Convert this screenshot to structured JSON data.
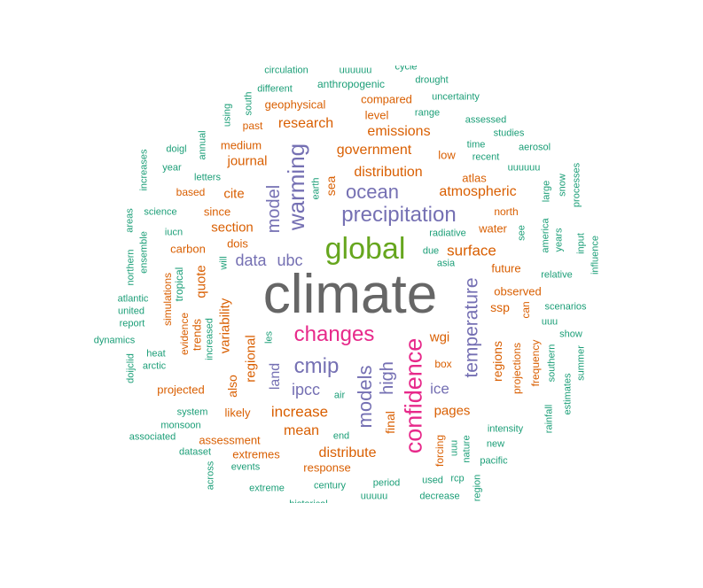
{
  "colors": {
    "dark_gray": "#666666",
    "green": "#66a61e",
    "pink": "#e7298a",
    "purple": "#7570b3",
    "orange": "#d95f02",
    "teal": "#1b9e77"
  },
  "words": [
    {
      "text": "climate",
      "color": "dark_gray",
      "vertical": false
    },
    {
      "text": "global",
      "color": "green",
      "vertical": false
    },
    {
      "text": "changes",
      "color": "pink",
      "vertical": false
    },
    {
      "text": "confidence",
      "color": "pink",
      "vertical": true
    },
    {
      "text": "precipitation",
      "color": "purple",
      "vertical": false
    },
    {
      "text": "models",
      "color": "purple",
      "vertical": true
    },
    {
      "text": "warming",
      "color": "purple",
      "vertical": true
    },
    {
      "text": "model",
      "color": "purple",
      "vertical": true
    },
    {
      "text": "cmip",
      "color": "purple",
      "vertical": false
    },
    {
      "text": "ocean",
      "color": "purple",
      "vertical": false
    },
    {
      "text": "high",
      "color": "purple",
      "vertical": true
    },
    {
      "text": "temperature",
      "color": "purple",
      "vertical": true
    },
    {
      "text": "ipcc",
      "color": "purple",
      "vertical": false
    },
    {
      "text": "data",
      "color": "purple",
      "vertical": false
    },
    {
      "text": "ubc",
      "color": "purple",
      "vertical": false
    },
    {
      "text": "land",
      "color": "purple",
      "vertical": true
    },
    {
      "text": "ice",
      "color": "purple",
      "vertical": false
    },
    {
      "text": "variability",
      "color": "orange",
      "vertical": true
    },
    {
      "text": "increase",
      "color": "orange",
      "vertical": false
    },
    {
      "text": "surface",
      "color": "orange",
      "vertical": false
    },
    {
      "text": "distribution",
      "color": "orange",
      "vertical": false
    },
    {
      "text": "government",
      "color": "orange",
      "vertical": false
    },
    {
      "text": "emissions",
      "color": "orange",
      "vertical": false
    },
    {
      "text": "atmospheric",
      "color": "orange",
      "vertical": false
    },
    {
      "text": "research",
      "color": "orange",
      "vertical": false
    },
    {
      "text": "distribute",
      "color": "orange",
      "vertical": false
    },
    {
      "text": "mean",
      "color": "orange",
      "vertical": false
    },
    {
      "text": "pages",
      "color": "orange",
      "vertical": false
    },
    {
      "text": "section",
      "color": "orange",
      "vertical": false
    },
    {
      "text": "journal",
      "color": "orange",
      "vertical": false
    },
    {
      "text": "cite",
      "color": "orange",
      "vertical": false
    },
    {
      "text": "regional",
      "color": "orange",
      "vertical": true
    },
    {
      "text": "final",
      "color": "orange",
      "vertical": true
    },
    {
      "text": "wgi",
      "color": "orange",
      "vertical": false
    },
    {
      "text": "quote",
      "color": "orange",
      "vertical": true
    },
    {
      "text": "regions",
      "color": "orange",
      "vertical": true
    },
    {
      "text": "ssp",
      "color": "orange",
      "vertical": false
    },
    {
      "text": "sea",
      "color": "orange",
      "vertical": true
    },
    {
      "text": "also",
      "color": "orange",
      "vertical": true
    },
    {
      "text": "trends",
      "color": "orange",
      "vertical": true
    },
    {
      "text": "carbon",
      "color": "orange",
      "vertical": false
    },
    {
      "text": "assessment",
      "color": "orange",
      "vertical": false
    },
    {
      "text": "extremes",
      "color": "orange",
      "vertical": false
    },
    {
      "text": "response",
      "color": "orange",
      "vertical": false
    },
    {
      "text": "projected",
      "color": "orange",
      "vertical": false
    },
    {
      "text": "observed",
      "color": "orange",
      "vertical": false
    },
    {
      "text": "future",
      "color": "orange",
      "vertical": false
    },
    {
      "text": "water",
      "color": "orange",
      "vertical": false
    },
    {
      "text": "atlas",
      "color": "orange",
      "vertical": false
    },
    {
      "text": "low",
      "color": "orange",
      "vertical": false
    },
    {
      "text": "level",
      "color": "orange",
      "vertical": false
    },
    {
      "text": "compared",
      "color": "orange",
      "vertical": false
    },
    {
      "text": "geophysical",
      "color": "orange",
      "vertical": false
    },
    {
      "text": "anthropogenic",
      "color": "teal",
      "vertical": false
    },
    {
      "text": "since",
      "color": "orange",
      "vertical": false
    },
    {
      "text": "dois",
      "color": "orange",
      "vertical": false
    },
    {
      "text": "likely",
      "color": "orange",
      "vertical": false
    },
    {
      "text": "medium",
      "color": "orange",
      "vertical": false
    },
    {
      "text": "based",
      "color": "orange",
      "vertical": false
    },
    {
      "text": "box",
      "color": "orange",
      "vertical": false
    },
    {
      "text": "north",
      "color": "orange",
      "vertical": false
    },
    {
      "text": "projections",
      "color": "orange",
      "vertical": true
    },
    {
      "text": "frequency",
      "color": "orange",
      "vertical": true
    },
    {
      "text": "simulations",
      "color": "orange",
      "vertical": true
    },
    {
      "text": "evidence",
      "color": "orange",
      "vertical": true
    },
    {
      "text": "forcing",
      "color": "orange",
      "vertical": true
    },
    {
      "text": "can",
      "color": "orange",
      "vertical": true
    },
    {
      "text": "past",
      "color": "orange",
      "vertical": false
    },
    {
      "text": "tropical",
      "color": "teal",
      "vertical": true
    },
    {
      "text": "circulation",
      "color": "teal",
      "vertical": false
    },
    {
      "text": "uuuuuu",
      "color": "teal",
      "vertical": false
    },
    {
      "text": "cycle",
      "color": "teal",
      "vertical": false
    },
    {
      "text": "different",
      "color": "teal",
      "vertical": false
    },
    {
      "text": "drought",
      "color": "teal",
      "vertical": false
    },
    {
      "text": "uncertainty",
      "color": "teal",
      "vertical": false
    },
    {
      "text": "range",
      "color": "teal",
      "vertical": false
    },
    {
      "text": "assessed",
      "color": "teal",
      "vertical": false
    },
    {
      "text": "studies",
      "color": "teal",
      "vertical": false
    },
    {
      "text": "time",
      "color": "teal",
      "vertical": false
    },
    {
      "text": "aerosol",
      "color": "teal",
      "vertical": false
    },
    {
      "text": "recent",
      "color": "teal",
      "vertical": false
    },
    {
      "text": "uuuuuu",
      "color": "teal",
      "vertical": false
    },
    {
      "text": "doigl",
      "color": "teal",
      "vertical": false
    },
    {
      "text": "year",
      "color": "teal",
      "vertical": false
    },
    {
      "text": "letters",
      "color": "teal",
      "vertical": false
    },
    {
      "text": "science",
      "color": "teal",
      "vertical": false
    },
    {
      "text": "iucn",
      "color": "teal",
      "vertical": false
    },
    {
      "text": "radiative",
      "color": "teal",
      "vertical": false
    },
    {
      "text": "due",
      "color": "teal",
      "vertical": false
    },
    {
      "text": "asia",
      "color": "teal",
      "vertical": false
    },
    {
      "text": "relative",
      "color": "teal",
      "vertical": false
    },
    {
      "text": "scenarios",
      "color": "teal",
      "vertical": false
    },
    {
      "text": "uuu",
      "color": "teal",
      "vertical": false
    },
    {
      "text": "show",
      "color": "teal",
      "vertical": false
    },
    {
      "text": "atlantic",
      "color": "teal",
      "vertical": false
    },
    {
      "text": "united",
      "color": "teal",
      "vertical": false
    },
    {
      "text": "report",
      "color": "teal",
      "vertical": false
    },
    {
      "text": "dynamics",
      "color": "teal",
      "vertical": false
    },
    {
      "text": "heat",
      "color": "teal",
      "vertical": false
    },
    {
      "text": "arctic",
      "color": "teal",
      "vertical": false
    },
    {
      "text": "system",
      "color": "teal",
      "vertical": false
    },
    {
      "text": "monsoon",
      "color": "teal",
      "vertical": false
    },
    {
      "text": "associated",
      "color": "teal",
      "vertical": false
    },
    {
      "text": "dataset",
      "color": "teal",
      "vertical": false
    },
    {
      "text": "events",
      "color": "teal",
      "vertical": false
    },
    {
      "text": "extreme",
      "color": "teal",
      "vertical": false
    },
    {
      "text": "century",
      "color": "teal",
      "vertical": false
    },
    {
      "text": "period",
      "color": "teal",
      "vertical": false
    },
    {
      "text": "used",
      "color": "teal",
      "vertical": false
    },
    {
      "text": "rcp",
      "color": "teal",
      "vertical": false
    },
    {
      "text": "uuuuu",
      "color": "teal",
      "vertical": false
    },
    {
      "text": "decrease",
      "color": "teal",
      "vertical": false
    },
    {
      "text": "intensity",
      "color": "teal",
      "vertical": false
    },
    {
      "text": "new",
      "color": "teal",
      "vertical": false
    },
    {
      "text": "pacific",
      "color": "teal",
      "vertical": false
    },
    {
      "text": "end",
      "color": "teal",
      "vertical": false
    },
    {
      "text": "air",
      "color": "teal",
      "vertical": false
    },
    {
      "text": "historical",
      "color": "teal",
      "vertical": false
    },
    {
      "text": "increases",
      "color": "teal",
      "vertical": true
    },
    {
      "text": "annual",
      "color": "teal",
      "vertical": true
    },
    {
      "text": "using",
      "color": "teal",
      "vertical": true
    },
    {
      "text": "south",
      "color": "teal",
      "vertical": true
    },
    {
      "text": "areas",
      "color": "teal",
      "vertical": true
    },
    {
      "text": "ensemble",
      "color": "teal",
      "vertical": true
    },
    {
      "text": "northern",
      "color": "teal",
      "vertical": true
    },
    {
      "text": "doijclid",
      "color": "teal",
      "vertical": true
    },
    {
      "text": "increased",
      "color": "teal",
      "vertical": true
    },
    {
      "text": "will",
      "color": "teal",
      "vertical": true
    },
    {
      "text": "les",
      "color": "teal",
      "vertical": true
    },
    {
      "text": "earth",
      "color": "teal",
      "vertical": true
    },
    {
      "text": "across",
      "color": "teal",
      "vertical": true
    },
    {
      "text": "uuu",
      "color": "teal",
      "vertical": true
    },
    {
      "text": "nature",
      "color": "teal",
      "vertical": true
    },
    {
      "text": "region",
      "color": "teal",
      "vertical": true
    },
    {
      "text": "see",
      "color": "teal",
      "vertical": true
    },
    {
      "text": "america",
      "color": "teal",
      "vertical": true
    },
    {
      "text": "large",
      "color": "teal",
      "vertical": true
    },
    {
      "text": "snow",
      "color": "teal",
      "vertical": true
    },
    {
      "text": "processes",
      "color": "teal",
      "vertical": true
    },
    {
      "text": "years",
      "color": "teal",
      "vertical": true
    },
    {
      "text": "input",
      "color": "teal",
      "vertical": true
    },
    {
      "text": "influence",
      "color": "teal",
      "vertical": true
    },
    {
      "text": "southern",
      "color": "teal",
      "vertical": true
    },
    {
      "text": "estimates",
      "color": "teal",
      "vertical": true
    },
    {
      "text": "summer",
      "color": "teal",
      "vertical": true
    },
    {
      "text": "rainfall",
      "color": "teal",
      "vertical": true
    }
  ]
}
